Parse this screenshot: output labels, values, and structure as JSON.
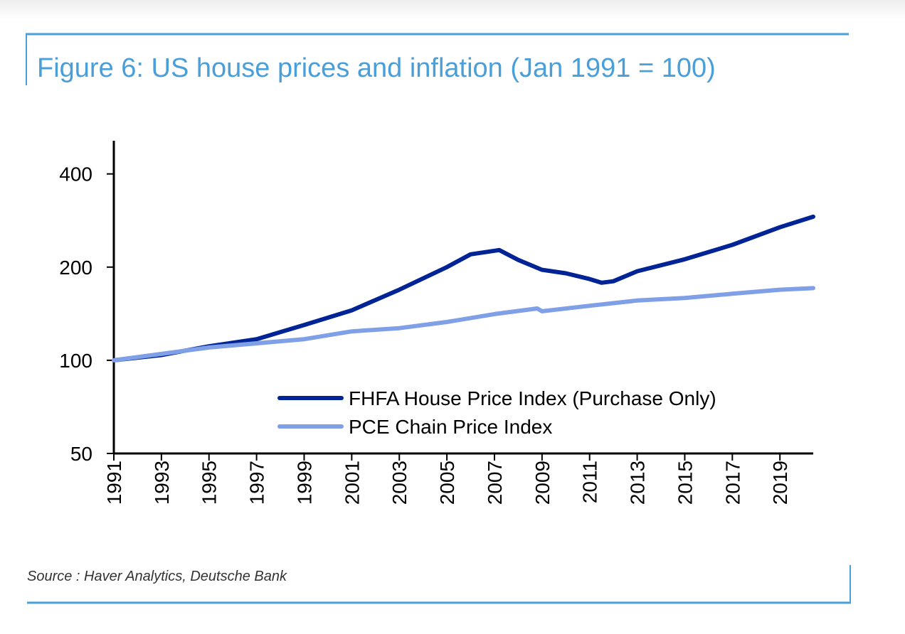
{
  "title": "Figure 6: US house prices and inflation (Jan 1991 = 100)",
  "source": "Source : Haver Analytics, Deutsche Bank",
  "colors": {
    "frame": "#4a9fd8",
    "fhfa": "#002496",
    "pce": "#7f9fe6"
  },
  "chart_data": {
    "type": "line",
    "title": "Figure 6: US house prices and inflation (Jan 1991 = 100)",
    "xlabel": "",
    "ylabel": "",
    "y_scale": "log",
    "ylim": [
      50,
      512
    ],
    "xlim": [
      1991,
      2020.4
    ],
    "y_ticks": [
      "400",
      "200",
      "100",
      "50"
    ],
    "y_tick_values": [
      400,
      200,
      100,
      50
    ],
    "x_ticks": [
      "1991",
      "1993",
      "1995",
      "1997",
      "1999",
      "2001",
      "2003",
      "2005",
      "2007",
      "2009",
      "2011",
      "2013",
      "2015",
      "2017",
      "2019"
    ],
    "grid": false,
    "legend_position": "bottom-right",
    "series": [
      {
        "name": "FHFA House Price Index (Purchase Only)",
        "color": "#002496",
        "x": [
          1991,
          1993,
          1995,
          1997,
          1999,
          2001,
          2003,
          2005,
          2006,
          2007.2,
          2008,
          2009,
          2010,
          2011,
          2011.5,
          2012,
          2013,
          2015,
          2017,
          2019,
          2020.4
        ],
        "y": [
          100,
          104,
          111,
          117,
          130,
          145,
          169,
          200,
          220,
          227,
          211,
          196,
          191,
          183,
          178,
          180,
          194,
          212,
          236,
          269,
          291
        ]
      },
      {
        "name": "PCE Chain Price Index",
        "color": "#7f9fe6",
        "x": [
          1991,
          1995,
          1999,
          2001,
          2003,
          2005,
          2007,
          2008.8,
          2009,
          2011,
          2013,
          2015,
          2017,
          2019,
          2020.4
        ],
        "y": [
          100,
          110,
          117,
          124,
          127,
          133,
          141,
          147,
          144,
          150,
          156,
          159,
          164,
          169,
          171
        ]
      }
    ]
  }
}
